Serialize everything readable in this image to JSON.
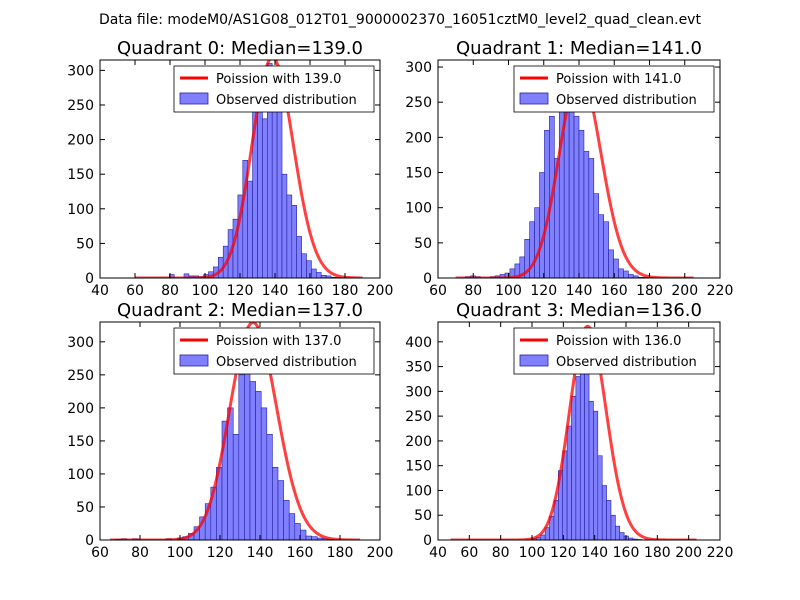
{
  "figure": {
    "suptitle": "Data file: modeM0/AS1G08_012T01_9000002370_16051cztM0_level2_quad_clean.evt",
    "colors": {
      "hist_fill": "#8080ff",
      "hist_edge": "#2020a0",
      "fit_line": "#ff0000"
    }
  },
  "chart_data": [
    {
      "type": "bar",
      "title": "Quadrant 0: Median=139.0",
      "xlim": [
        40,
        200
      ],
      "ylim": [
        0,
        315
      ],
      "xticks": [
        40,
        60,
        80,
        100,
        120,
        140,
        160,
        180,
        200
      ],
      "yticks": [
        0,
        50,
        100,
        150,
        200,
        250,
        300
      ],
      "legend": {
        "placement": "top-right",
        "line_label": "Poission with 139.0",
        "bar_label": "Observed distribution"
      },
      "poisson_mean": 139.0,
      "poisson_scale": 9410,
      "poisson_range": [
        60,
        190
      ],
      "bins": {
        "start": 60,
        "width": 2.8
      },
      "values": [
        0,
        0,
        0,
        0,
        0,
        0,
        0,
        5,
        0,
        0,
        6,
        3,
        3,
        2,
        5,
        9,
        16,
        30,
        46,
        70,
        85,
        120,
        170,
        140,
        260,
        300,
        230,
        310,
        290,
        250,
        150,
        120,
        105,
        60,
        35,
        25,
        13,
        8,
        4,
        3,
        1,
        1,
        0,
        0,
        0,
        0,
        0
      ]
    },
    {
      "type": "bar",
      "title": "Quadrant 1: Median=141.0",
      "xlim": [
        60,
        220
      ],
      "ylim": [
        0,
        310
      ],
      "xticks": [
        60,
        80,
        100,
        120,
        140,
        160,
        180,
        200,
        220
      ],
      "yticks": [
        0,
        50,
        100,
        150,
        200,
        250,
        300
      ],
      "legend": {
        "placement": "top-right",
        "line_label": "Poission with 141.0",
        "bar_label": "Observed distribution"
      },
      "poisson_mean": 141.0,
      "poisson_scale": 8655,
      "poisson_range": [
        70,
        205
      ],
      "bins": {
        "start": 70,
        "width": 2.8
      },
      "values": [
        0,
        0,
        2,
        3,
        2,
        0,
        0,
        2,
        3,
        5,
        7,
        13,
        20,
        30,
        55,
        80,
        100,
        150,
        210,
        230,
        170,
        250,
        260,
        280,
        230,
        210,
        180,
        170,
        120,
        90,
        80,
        40,
        27,
        13,
        10,
        5,
        3,
        1,
        1,
        1,
        0,
        0,
        0,
        0,
        0,
        0,
        0,
        0
      ]
    },
    {
      "type": "bar",
      "title": "Quadrant 2: Median=137.0",
      "xlim": [
        60,
        200
      ],
      "ylim": [
        0,
        330
      ],
      "xticks": [
        60,
        80,
        100,
        120,
        140,
        160,
        180,
        200
      ],
      "yticks": [
        0,
        50,
        100,
        150,
        200,
        250,
        300
      ],
      "legend": {
        "placement": "top-right",
        "line_label": "Poission with 137.0",
        "bar_label": "Observed distribution"
      },
      "poisson_mean": 137.0,
      "poisson_scale": 9660,
      "poisson_range": [
        65,
        190
      ],
      "bins": {
        "start": 65,
        "width": 2.8
      },
      "values": [
        0,
        1,
        2,
        0,
        2,
        0,
        0,
        0,
        0,
        0,
        2,
        0,
        3,
        5,
        10,
        20,
        35,
        55,
        80,
        110,
        180,
        200,
        160,
        250,
        270,
        240,
        225,
        200,
        160,
        110,
        90,
        60,
        40,
        25,
        15,
        6,
        5,
        3,
        2,
        1,
        0,
        0,
        0
      ]
    },
    {
      "type": "bar",
      "title": "Quadrant 3: Median=136.0",
      "xlim": [
        40,
        220
      ],
      "ylim": [
        0,
        440
      ],
      "xticks": [
        40,
        60,
        80,
        100,
        120,
        140,
        160,
        180,
        200,
        220
      ],
      "yticks": [
        0,
        50,
        100,
        150,
        200,
        250,
        300,
        350,
        400
      ],
      "legend": {
        "placement": "top-right",
        "line_label": "Poission with 136.0",
        "bar_label": "Observed distribution"
      },
      "poisson_mean": 136.0,
      "poisson_scale": 12610,
      "poisson_range": [
        48,
        205
      ],
      "bins": {
        "start": 100,
        "width": 2.8
      },
      "values": [
        3,
        5,
        10,
        25,
        48,
        80,
        140,
        180,
        230,
        290,
        330,
        370,
        400,
        280,
        260,
        170,
        110,
        80,
        50,
        28,
        15,
        8,
        4,
        2,
        1
      ]
    }
  ]
}
